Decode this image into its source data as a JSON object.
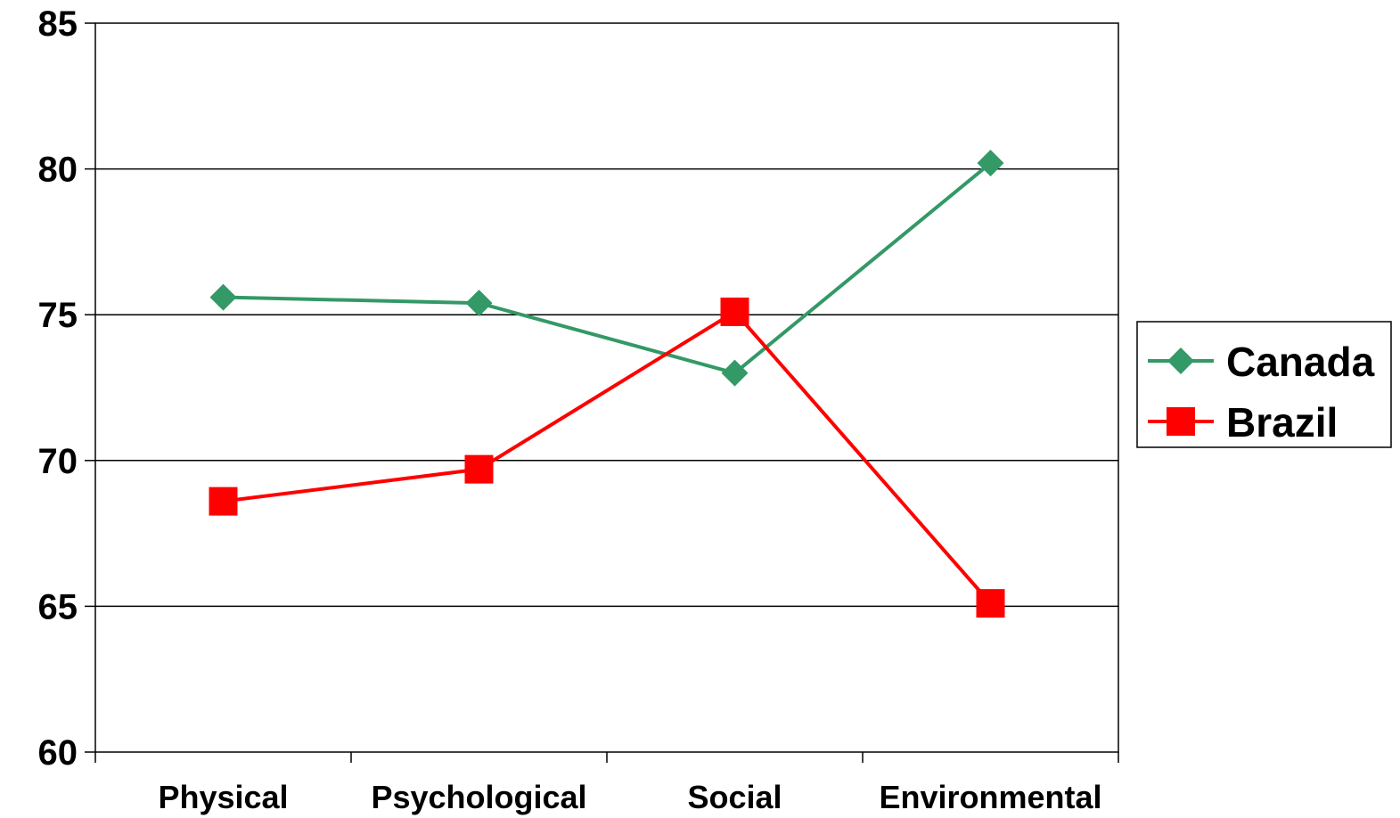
{
  "chart_data": {
    "type": "line",
    "categories": [
      "Physical",
      "Psychological",
      "Social",
      "Environmental"
    ],
    "series": [
      {
        "name": "Canada",
        "values": [
          75.6,
          75.4,
          73.0,
          80.2
        ],
        "color": "#339966",
        "marker": "diamond"
      },
      {
        "name": "Brazil",
        "values": [
          68.6,
          69.7,
          75.1,
          65.1
        ],
        "color": "#ff0000",
        "marker": "square"
      }
    ],
    "ylim": [
      60,
      85
    ],
    "yticks": [
      "60",
      "65",
      "70",
      "75",
      "80",
      "85"
    ],
    "grid": true,
    "legend_position": "right"
  }
}
